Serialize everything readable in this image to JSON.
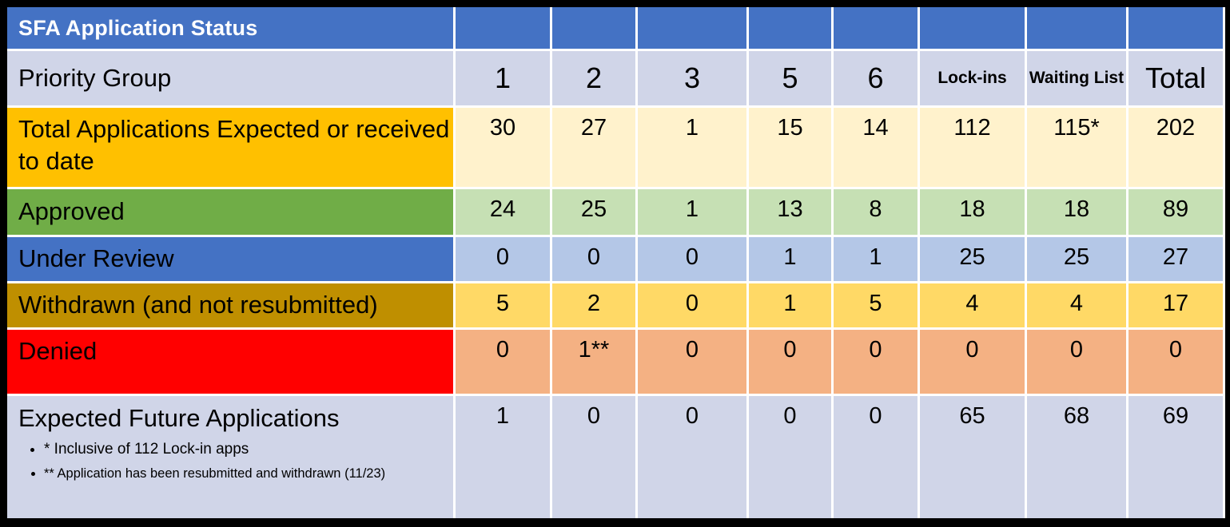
{
  "slide": {
    "title": "SFA Application Status"
  },
  "table": {
    "corner_label": "Priority Group",
    "columns": [
      "1",
      "2",
      "3",
      "5",
      "6",
      "Lock-ins",
      "Waiting List",
      "Total"
    ],
    "rows": [
      {
        "label": "Total Applications Expected or received to date",
        "values": [
          "30",
          "27",
          "1",
          "15",
          "14",
          "112",
          "115*",
          "202"
        ]
      },
      {
        "label": "Approved",
        "values": [
          "24",
          "25",
          "1",
          "13",
          "8",
          "18",
          "18",
          "89"
        ]
      },
      {
        "label": "Under Review",
        "values": [
          "0",
          "0",
          "0",
          "1",
          "1",
          "25",
          "25",
          "27"
        ]
      },
      {
        "label": "Withdrawn (and not resubmitted)",
        "values": [
          "5",
          "2",
          "0",
          "1",
          "5",
          "4",
          "4",
          "17"
        ]
      },
      {
        "label": "Denied",
        "values": [
          "0",
          "1**",
          "0",
          "0",
          "0",
          "0",
          "0",
          "0"
        ]
      },
      {
        "label": "Expected Future Applications",
        "values": [
          "1",
          "0",
          "0",
          "0",
          "0",
          "65",
          "68",
          "69"
        ]
      }
    ],
    "footnotes": [
      "* Inclusive of 112 Lock-in apps",
      "** Application has been resubmitted and withdrawn (11/23)"
    ]
  },
  "colors": {
    "header_blue": "#4472C4",
    "lavender": "#D0D5E8",
    "amber": "#FFC000",
    "cream": "#FFF2CC",
    "green": "#70AD47",
    "light_green": "#C6E0B4",
    "light_blue": "#B4C7E7",
    "dark_gold": "#BF8F00",
    "light_gold": "#FFD966",
    "red": "#FF0000",
    "light_orange": "#F4B183",
    "border_black": "#000000",
    "gap_white": "#FFFFFF"
  }
}
